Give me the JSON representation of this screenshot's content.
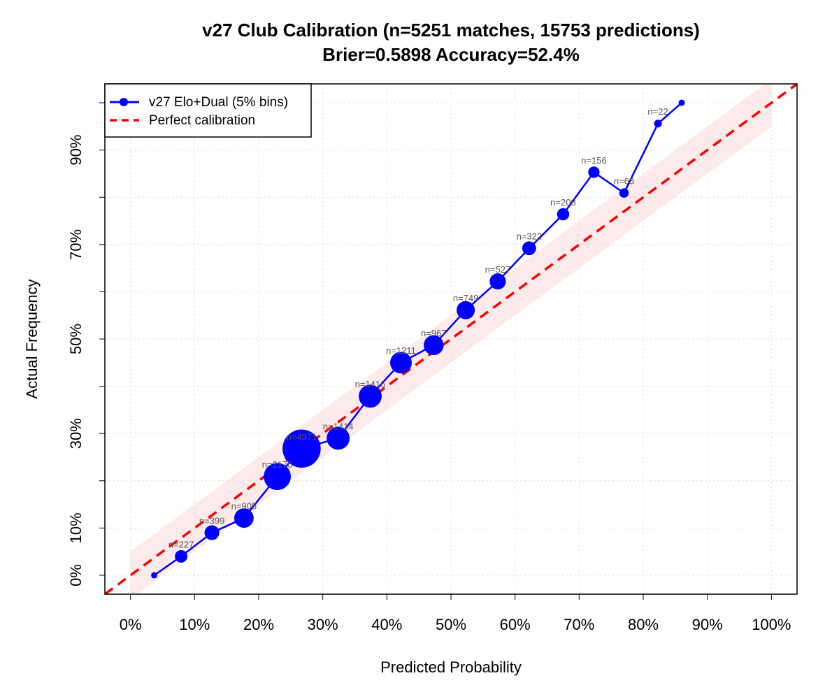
{
  "chart_data": {
    "type": "line",
    "title": "v27 Club Calibration (n=5251 matches, 15753 predictions)",
    "subtitle": "Brier=0.5898  Accuracy=52.4%",
    "x_label": "Predicted Probability",
    "y_label": "Actual Frequency",
    "xlim": [
      -4,
      104
    ],
    "ylim": [
      -4,
      104
    ],
    "xticks": [
      {
        "value": 0,
        "label": "0%"
      },
      {
        "value": 10,
        "label": "10%"
      },
      {
        "value": 20,
        "label": "20%"
      },
      {
        "value": 30,
        "label": "30%"
      },
      {
        "value": 40,
        "label": "40%"
      },
      {
        "value": 50,
        "label": "50%"
      },
      {
        "value": 60,
        "label": "60%"
      },
      {
        "value": 70,
        "label": "70%"
      },
      {
        "value": 80,
        "label": "80%"
      },
      {
        "value": 90,
        "label": "90%"
      },
      {
        "value": 100,
        "label": "100%"
      }
    ],
    "yticks": [
      {
        "value": 0,
        "label": "0%"
      },
      {
        "value": 10,
        "label": "10%"
      },
      {
        "value": 20,
        "label": null
      },
      {
        "value": 30,
        "label": "30%"
      },
      {
        "value": 40,
        "label": null
      },
      {
        "value": 50,
        "label": "50%"
      },
      {
        "value": 60,
        "label": null
      },
      {
        "value": 70,
        "label": "70%"
      },
      {
        "value": 80,
        "label": null
      },
      {
        "value": 90,
        "label": "90%"
      },
      {
        "value": 100,
        "label": null
      }
    ],
    "grid": true,
    "legend": "topleft",
    "band_halfwidth": 5,
    "band_color": "#fdeaea",
    "series": [
      {
        "name": "v27 Elo+Dual (5% bins)",
        "color": "#0000ff",
        "x": [
          3.7,
          7.9,
          12.7,
          17.7,
          22.9,
          26.7,
          32.4,
          37.4,
          42.2,
          47.3,
          52.3,
          57.3,
          62.2,
          67.5,
          72.3,
          77.0,
          82.3,
          86.0
        ],
        "values": [
          0,
          4.0,
          9.0,
          12.1,
          20.9,
          26.8,
          29.0,
          37.9,
          45.0,
          48.7,
          56.1,
          62.2,
          69.2,
          76.4,
          85.3,
          80.9,
          95.6,
          100
        ],
        "sizes": [
          null,
          227,
          399,
          905,
          2170,
          4971,
          1414,
          1416,
          1211,
          967,
          749,
          527,
          322,
          208,
          156,
          68,
          22,
          null
        ],
        "value_labels": [
          null,
          "n=227",
          "n=399",
          "n=905",
          "n=2170",
          "n=4971",
          "n=1414",
          "n=1416",
          "n=1211",
          "n=967",
          "n=749",
          "n=527",
          "n=322",
          "n=208",
          "n=156",
          "n=68",
          "n=22",
          null
        ]
      },
      {
        "name": "Perfect calibration",
        "color": "#ff0000",
        "dashed": true
      }
    ]
  }
}
